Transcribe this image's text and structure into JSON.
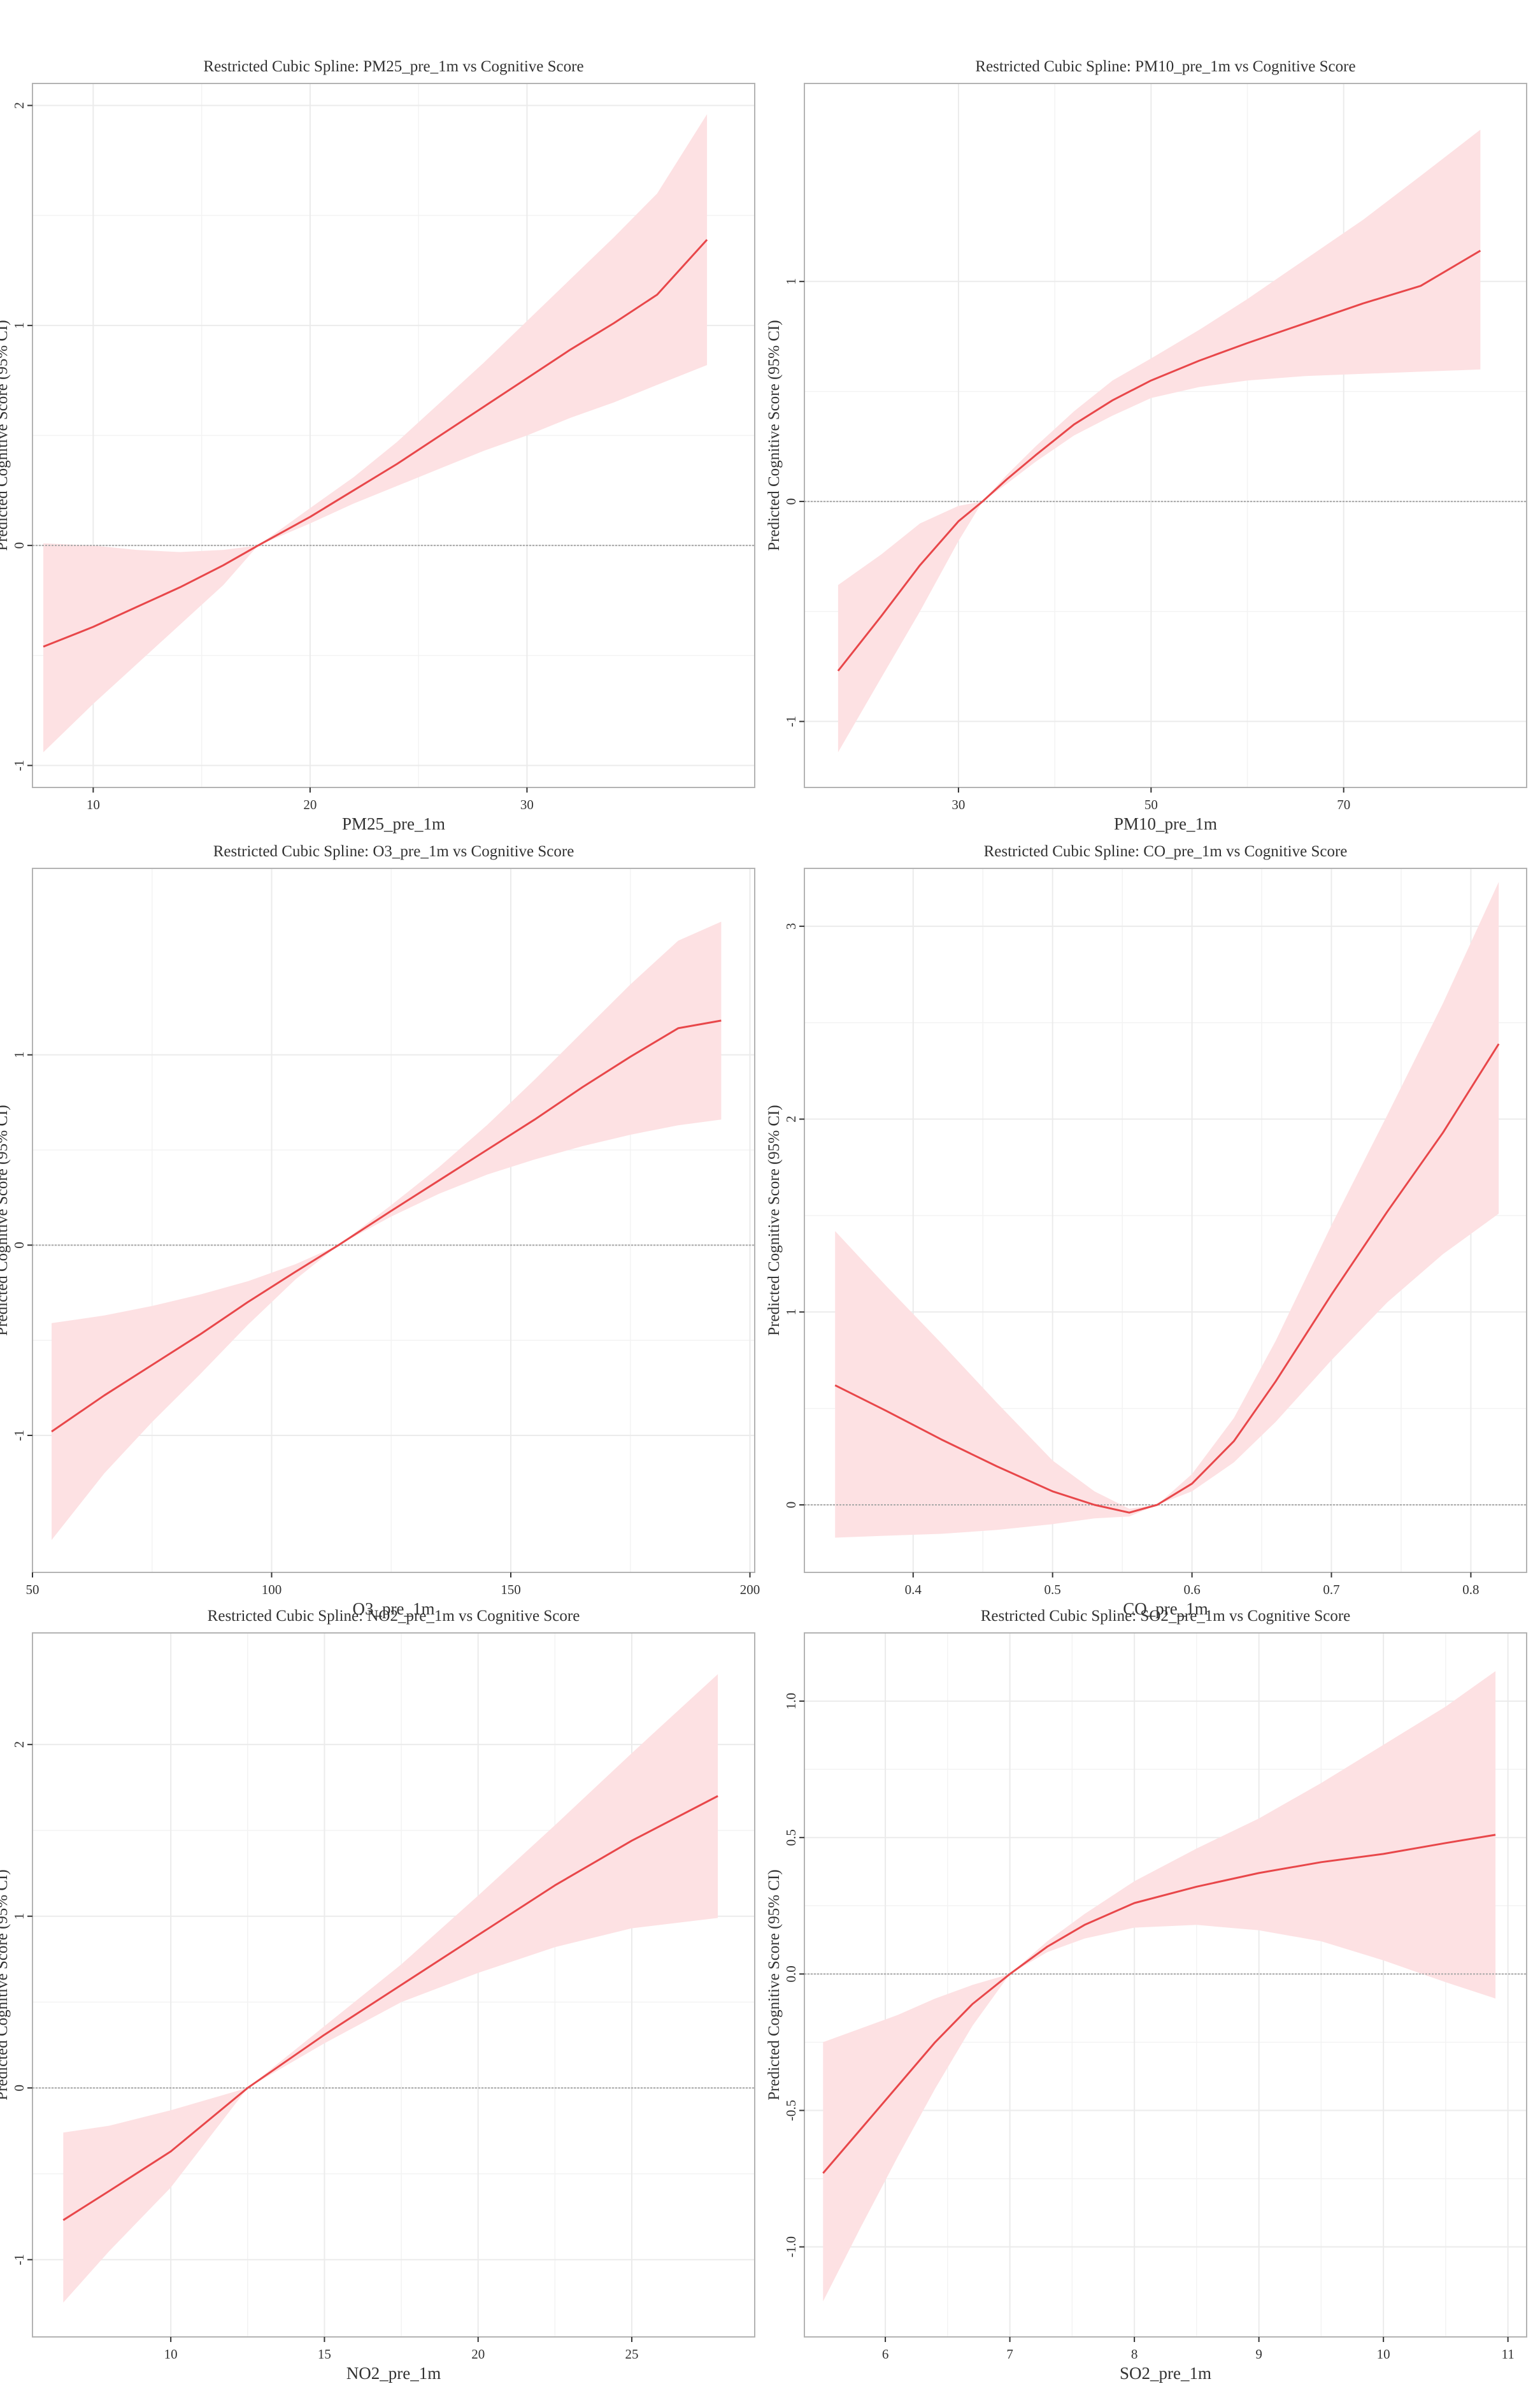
{
  "page": {
    "background": "#ffffff"
  },
  "style": {
    "line_color": "#e8474a",
    "band_color": "#fde1e3",
    "grid_color": "#ebebeb",
    "border_color": "#b3b3b3",
    "ref_line_color": "#a8a8a8"
  },
  "chart_data": [
    {
      "type": "line",
      "title": "Restricted Cubic Spline: PM25_pre_1m vs Cognitive Score",
      "xlabel": "PM25_pre_1m",
      "ylabel": "Predicted Cognitive Score (95% CI)",
      "xlim": [
        7.2,
        40.5
      ],
      "ylim": [
        -1.1,
        2.1
      ],
      "xticks": [
        10,
        20,
        30
      ],
      "xtick_labels": [
        "10",
        "20",
        "30"
      ],
      "yticks": [
        -1,
        0,
        1,
        2
      ],
      "ytick_labels": [
        "-1",
        "0",
        "1",
        "2"
      ],
      "reference_line": 0,
      "series": [
        {
          "name": "fit",
          "x": [
            7.7,
            10,
            12,
            14,
            16,
            17.6,
            20,
            22,
            24,
            26,
            28,
            30,
            32,
            34,
            36,
            38.3
          ],
          "y": [
            -0.46,
            -0.37,
            -0.28,
            -0.19,
            -0.09,
            0,
            0.13,
            0.25,
            0.37,
            0.5,
            0.63,
            0.76,
            0.89,
            1.01,
            1.14,
            1.39
          ],
          "lower": [
            -0.94,
            -0.72,
            -0.54,
            -0.36,
            -0.18,
            0,
            0.1,
            0.19,
            0.27,
            0.35,
            0.43,
            0.5,
            0.58,
            0.65,
            0.73,
            0.82
          ],
          "upper": [
            0.01,
            0.0,
            -0.02,
            -0.03,
            -0.02,
            0,
            0.17,
            0.31,
            0.47,
            0.65,
            0.83,
            1.02,
            1.21,
            1.4,
            1.6,
            1.96
          ]
        }
      ]
    },
    {
      "type": "line",
      "title": "Restricted Cubic Spline: PM10_pre_1m vs Cognitive Score",
      "xlabel": "PM10_pre_1m",
      "ylabel": "Predicted Cognitive Score (95% CI)",
      "xlim": [
        14,
        89
      ],
      "ylim": [
        -1.3,
        1.9
      ],
      "xticks": [
        30,
        50,
        70
      ],
      "xtick_labels": [
        "30",
        "50",
        "70"
      ],
      "yticks": [
        -1,
        0,
        1
      ],
      "ytick_labels": [
        "-1",
        "0",
        "1"
      ],
      "reference_line": 0,
      "series": [
        {
          "name": "fit",
          "x": [
            17.5,
            22,
            26,
            30,
            32.5,
            35,
            38,
            42,
            46,
            50,
            55,
            60,
            66,
            72,
            78,
            84.2
          ],
          "y": [
            -0.77,
            -0.52,
            -0.29,
            -0.09,
            0,
            0.1,
            0.21,
            0.35,
            0.46,
            0.55,
            0.64,
            0.72,
            0.81,
            0.9,
            0.98,
            1.14
          ],
          "lower": [
            -1.14,
            -0.8,
            -0.5,
            -0.18,
            0,
            0.08,
            0.18,
            0.3,
            0.39,
            0.47,
            0.52,
            0.55,
            0.57,
            0.58,
            0.59,
            0.6
          ],
          "upper": [
            -0.38,
            -0.24,
            -0.1,
            -0.02,
            0,
            0.12,
            0.25,
            0.41,
            0.55,
            0.65,
            0.78,
            0.92,
            1.1,
            1.28,
            1.48,
            1.69
          ]
        }
      ]
    },
    {
      "type": "line",
      "title": "Restricted Cubic Spline: O3_pre_1m vs Cognitive Score",
      "xlabel": "O3_pre_1m",
      "ylabel": "Predicted Cognitive Score (95% CI)",
      "xlim": [
        50,
        201
      ],
      "ylim": [
        -1.72,
        1.98
      ],
      "xticks": [
        50,
        100,
        150,
        200
      ],
      "xtick_labels": [
        "50",
        "100",
        "150",
        "200"
      ],
      "yticks": [
        -1,
        0,
        1
      ],
      "ytick_labels": [
        "-1",
        "0",
        "1"
      ],
      "reference_line": 0,
      "series": [
        {
          "name": "fit",
          "x": [
            54,
            65,
            75,
            85,
            95,
            105,
            114,
            125,
            135,
            145,
            155,
            165,
            175,
            185,
            194
          ],
          "y": [
            -0.98,
            -0.79,
            -0.63,
            -0.47,
            -0.3,
            -0.14,
            0,
            0.18,
            0.34,
            0.5,
            0.66,
            0.83,
            0.99,
            1.14,
            1.18
          ],
          "lower": [
            -1.55,
            -1.2,
            -0.93,
            -0.68,
            -0.42,
            -0.18,
            0,
            0.15,
            0.27,
            0.37,
            0.45,
            0.52,
            0.58,
            0.63,
            0.66
          ],
          "upper": [
            -0.41,
            -0.37,
            -0.32,
            -0.26,
            -0.19,
            -0.1,
            0,
            0.21,
            0.41,
            0.63,
            0.87,
            1.12,
            1.37,
            1.6,
            1.7
          ]
        }
      ]
    },
    {
      "type": "line",
      "title": "Restricted Cubic Spline: CO_pre_1m vs Cognitive Score",
      "xlabel": "CO_pre_1m",
      "ylabel": "Predicted Cognitive Score (95% CI)",
      "xlim": [
        0.322,
        0.84
      ],
      "ylim": [
        -0.35,
        3.3
      ],
      "xticks": [
        0.4,
        0.5,
        0.6,
        0.7,
        0.8
      ],
      "xtick_labels": [
        "0.4",
        "0.5",
        "0.6",
        "0.7",
        "0.8"
      ],
      "yticks": [
        0,
        1,
        2,
        3
      ],
      "ytick_labels": [
        "0",
        "1",
        "2",
        "3"
      ],
      "reference_line": 0,
      "series": [
        {
          "name": "fit",
          "x": [
            0.344,
            0.38,
            0.42,
            0.46,
            0.5,
            0.53,
            0.555,
            0.575,
            0.6,
            0.63,
            0.66,
            0.7,
            0.74,
            0.78,
            0.82
          ],
          "y": [
            0.62,
            0.49,
            0.34,
            0.2,
            0.07,
            0.0,
            -0.04,
            0,
            0.11,
            0.33,
            0.64,
            1.09,
            1.52,
            1.93,
            2.39
          ],
          "lower": [
            -0.17,
            -0.16,
            -0.15,
            -0.13,
            -0.1,
            -0.07,
            -0.06,
            0,
            0.07,
            0.22,
            0.43,
            0.75,
            1.05,
            1.3,
            1.51
          ],
          "upper": [
            1.42,
            1.14,
            0.84,
            0.53,
            0.23,
            0.07,
            -0.02,
            0,
            0.16,
            0.45,
            0.85,
            1.45,
            2.02,
            2.6,
            3.23
          ]
        }
      ]
    },
    {
      "type": "line",
      "title": "Restricted Cubic Spline: NO2_pre_1m vs Cognitive Score",
      "xlabel": "NO2_pre_1m",
      "ylabel": "Predicted Cognitive Score (95% CI)",
      "xlim": [
        5.5,
        29
      ],
      "ylim": [
        -1.45,
        2.65
      ],
      "xticks": [
        10,
        15,
        20,
        25
      ],
      "xtick_labels": [
        "10",
        "15",
        "20",
        "25"
      ],
      "yticks": [
        -1,
        0,
        1,
        2
      ],
      "ytick_labels": [
        "-1",
        "0",
        "1",
        "2"
      ],
      "reference_line": 0,
      "series": [
        {
          "name": "fit",
          "x": [
            6.5,
            8,
            10,
            12.5,
            15,
            17.5,
            20,
            22.5,
            25,
            27.8
          ],
          "y": [
            -0.77,
            -0.6,
            -0.37,
            0,
            0.31,
            0.6,
            0.89,
            1.18,
            1.44,
            1.7
          ],
          "lower": [
            -1.25,
            -0.95,
            -0.58,
            0,
            0.26,
            0.5,
            0.67,
            0.82,
            0.93,
            0.99
          ],
          "upper": [
            -0.26,
            -0.22,
            -0.13,
            0,
            0.36,
            0.72,
            1.12,
            1.53,
            1.95,
            2.41
          ]
        }
      ]
    },
    {
      "type": "line",
      "title": "Restricted Cubic Spline: SO2_pre_1m vs Cognitive Score",
      "xlabel": "SO2_pre_1m",
      "ylabel": "Predicted Cognitive Score (95% CI)",
      "xlim": [
        5.35,
        11.15
      ],
      "ylim": [
        -1.33,
        1.25
      ],
      "xticks": [
        6,
        7,
        8,
        9,
        10,
        11
      ],
      "xtick_labels": [
        "6",
        "7",
        "8",
        "9",
        "10",
        "11"
      ],
      "yticks": [
        -1.0,
        -0.5,
        0.0,
        0.5,
        1.0
      ],
      "ytick_labels": [
        "-1.0",
        "-0.5",
        "0.0",
        "0.5",
        "1.0"
      ],
      "reference_line": 0,
      "series": [
        {
          "name": "fit",
          "x": [
            5.5,
            5.8,
            6.1,
            6.4,
            6.7,
            7.0,
            7.3,
            7.6,
            8.0,
            8.5,
            9.0,
            9.5,
            10.0,
            10.5,
            10.9
          ],
          "y": [
            -0.73,
            -0.57,
            -0.41,
            -0.25,
            -0.11,
            0,
            0.1,
            0.18,
            0.26,
            0.32,
            0.37,
            0.41,
            0.44,
            0.48,
            0.51
          ],
          "lower": [
            -1.2,
            -0.93,
            -0.67,
            -0.42,
            -0.19,
            0,
            0.08,
            0.13,
            0.17,
            0.18,
            0.16,
            0.12,
            0.05,
            -0.03,
            -0.09
          ],
          "upper": [
            -0.25,
            -0.2,
            -0.15,
            -0.09,
            -0.04,
            0,
            0.12,
            0.22,
            0.34,
            0.46,
            0.57,
            0.7,
            0.84,
            0.98,
            1.11
          ]
        }
      ]
    }
  ]
}
